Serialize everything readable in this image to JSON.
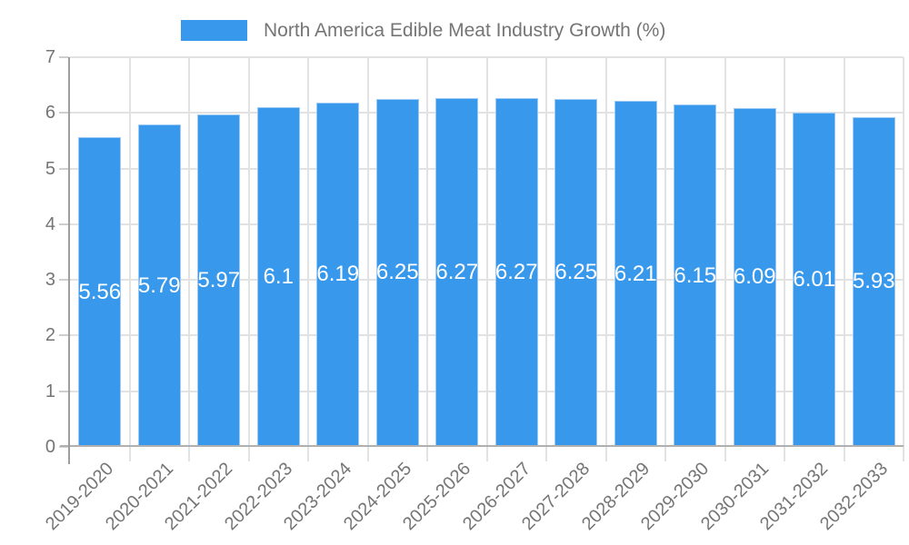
{
  "chart_data": {
    "type": "bar",
    "title": "North America Edible Meat Industry Growth (%)",
    "legend": {
      "label": "North America Edible Meat Industry Growth (%)",
      "position": "top"
    },
    "categories": [
      "2019-2020",
      "2020-2021",
      "2021-2022",
      "2022-2023",
      "2023-2024",
      "2024-2025",
      "2025-2026",
      "2026-2027",
      "2027-2028",
      "2028-2029",
      "2029-2030",
      "2030-2031",
      "2031-2032",
      "2032-2033"
    ],
    "series": [
      {
        "name": "North America Edible Meat Industry Growth (%)",
        "values": [
          5.56,
          5.79,
          5.97,
          6.1,
          6.19,
          6.25,
          6.27,
          6.27,
          6.25,
          6.21,
          6.15,
          6.09,
          6.01,
          5.93
        ],
        "value_labels": [
          "5.56",
          "5.79",
          "5.97",
          "6.1",
          "6.19",
          "6.25",
          "6.27",
          "6.27",
          "6.25",
          "6.21",
          "6.15",
          "6.09",
          "6.01",
          "5.93"
        ]
      }
    ],
    "xlabel": "",
    "ylabel": "",
    "ylim": [
      0,
      7
    ],
    "yticks": [
      0,
      1,
      2,
      3,
      4,
      5,
      6,
      7
    ],
    "grid": true,
    "value_labels_inside_bars": true,
    "colors": {
      "bar": "#3798ec",
      "bar_border": "#9ccaf4",
      "gridline": "#e2e2e2",
      "x_axis_line": "#b0b0b0",
      "y_axis_line": "#9e9e9e",
      "tick_mark": "#cfcfcf",
      "label_text": "#757575",
      "bar_value_text": "#ffffff"
    }
  }
}
